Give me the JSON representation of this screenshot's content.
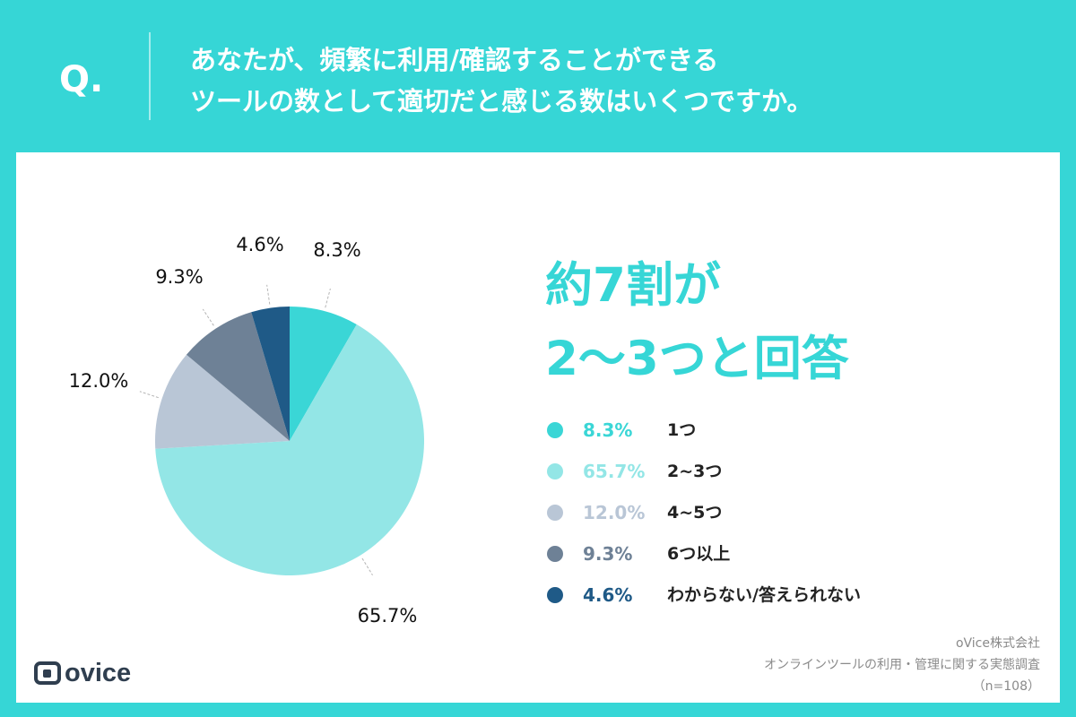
{
  "header": {
    "q_label": "Q.",
    "question_line1": "あなたが、頻繁に利用/確認することができる",
    "question_line2": "ツールの数として適切だと感じる数はいくつですか。"
  },
  "headline": {
    "line1": "約7割が",
    "line2": "2〜3つと回答"
  },
  "legend": [
    {
      "pct": "8.3%",
      "text": "1つ"
    },
    {
      "pct": "65.7%",
      "text": "2~3つ"
    },
    {
      "pct": "12.0%",
      "text": "4~5つ"
    },
    {
      "pct": "9.3%",
      "text": "6つ以上"
    },
    {
      "pct": "4.6%",
      "text": "わからない/答えられない"
    }
  ],
  "logo": {
    "text": "ovice"
  },
  "source": {
    "line1": "oVice株式会社",
    "line2": "オンラインツールの利用・管理に関する実態調査",
    "line3": "（n=108）"
  },
  "chart_data": {
    "type": "pie",
    "categories": [
      "1つ",
      "2~3つ",
      "4~5つ",
      "6つ以上",
      "わからない/答えられない"
    ],
    "values": [
      8.3,
      65.7,
      12.0,
      9.3,
      4.6
    ],
    "labels": [
      "8.3%",
      "65.7%",
      "12.0%",
      "9.3%",
      "4.6%"
    ],
    "colors": [
      "#3ad6d6",
      "#93e6e6",
      "#b9c6d6",
      "#6e8196",
      "#1f5a87"
    ],
    "legend_placement": "right"
  }
}
